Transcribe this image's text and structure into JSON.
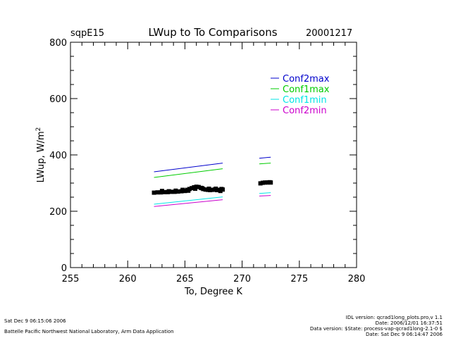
{
  "header": {
    "site": "sqpE15",
    "title": "LWup to To Comparisons",
    "date": "20001217"
  },
  "chart_data": {
    "type": "line",
    "xlabel": "To, Degree K",
    "ylabel": "LWup, W/m",
    "ylabel_superscript": "2",
    "xlim": [
      255,
      280
    ],
    "ylim": [
      0,
      800
    ],
    "xticks": [
      255,
      260,
      265,
      270,
      275,
      280
    ],
    "yticks": [
      0,
      200,
      400,
      600,
      800
    ],
    "legend_position": "top-right",
    "series": [
      {
        "name": "Conf2max",
        "color": "#0000cc",
        "segments": [
          {
            "x": [
              262.3,
              268.3
            ],
            "y": [
              340,
              371
            ]
          },
          {
            "x": [
              271.5,
              272.5
            ],
            "y": [
              388,
              392
            ]
          }
        ]
      },
      {
        "name": "Conf1max",
        "color": "#00cc00",
        "segments": [
          {
            "x": [
              262.3,
              268.3
            ],
            "y": [
              320,
              351
            ]
          },
          {
            "x": [
              271.5,
              272.5
            ],
            "y": [
              368,
              371
            ]
          }
        ]
      },
      {
        "name": "Conf1min",
        "color": "#00e5e5",
        "segments": [
          {
            "x": [
              262.3,
              268.3
            ],
            "y": [
              225,
              251
            ]
          },
          {
            "x": [
              271.5,
              272.5
            ],
            "y": [
              263,
              266
            ]
          }
        ]
      },
      {
        "name": "Conf2min",
        "color": "#cc00cc",
        "segments": [
          {
            "x": [
              262.3,
              268.3
            ],
            "y": [
              217,
              241
            ]
          },
          {
            "x": [
              271.5,
              272.5
            ],
            "y": [
              254,
              256
            ]
          }
        ]
      }
    ],
    "observations": {
      "color": "#000000",
      "points": [
        [
          262.3,
          266
        ],
        [
          262.6,
          267
        ],
        [
          262.9,
          267
        ],
        [
          263.2,
          268
        ],
        [
          263.5,
          268
        ],
        [
          263.8,
          269
        ],
        [
          264.1,
          269
        ],
        [
          264.4,
          270
        ],
        [
          264.7,
          271
        ],
        [
          265.0,
          272
        ],
        [
          265.2,
          276
        ],
        [
          265.4,
          279
        ],
        [
          265.6,
          282
        ],
        [
          265.8,
          285
        ],
        [
          266.0,
          287
        ],
        [
          266.2,
          286
        ],
        [
          266.4,
          283
        ],
        [
          266.6,
          279
        ],
        [
          266.8,
          277
        ],
        [
          267.0,
          276
        ],
        [
          267.2,
          275
        ],
        [
          267.4,
          276
        ],
        [
          267.6,
          277
        ],
        [
          267.8,
          275
        ],
        [
          268.0,
          276
        ],
        [
          268.2,
          279
        ],
        [
          268.3,
          277
        ],
        [
          263.0,
          272
        ],
        [
          263.6,
          271
        ],
        [
          264.2,
          273
        ],
        [
          264.8,
          276
        ],
        [
          265.3,
          273
        ],
        [
          265.9,
          280
        ],
        [
          266.5,
          282
        ],
        [
          267.1,
          280
        ],
        [
          267.7,
          280
        ],
        [
          268.1,
          272
        ],
        [
          271.6,
          299
        ],
        [
          271.8,
          301
        ],
        [
          272.0,
          302
        ],
        [
          272.2,
          302
        ],
        [
          272.4,
          303
        ],
        [
          272.5,
          302
        ]
      ]
    }
  },
  "footer": {
    "left_line1": "Sat Dec  9 06:15:06 2006",
    "left_line2": "Battelle Pacific Northwest National Laboratory, Arm Data Application",
    "right_line1": "IDL version: qcrad1long_plots.pro,v 1.1",
    "right_line2": "Date: 2006/12/01 16:37:51",
    "right_line3": "Data version: $State: process-vap-qcrad1long-2.1-0 $",
    "right_line4": "Date: Sat Dec  9 06:14:47 2006"
  }
}
